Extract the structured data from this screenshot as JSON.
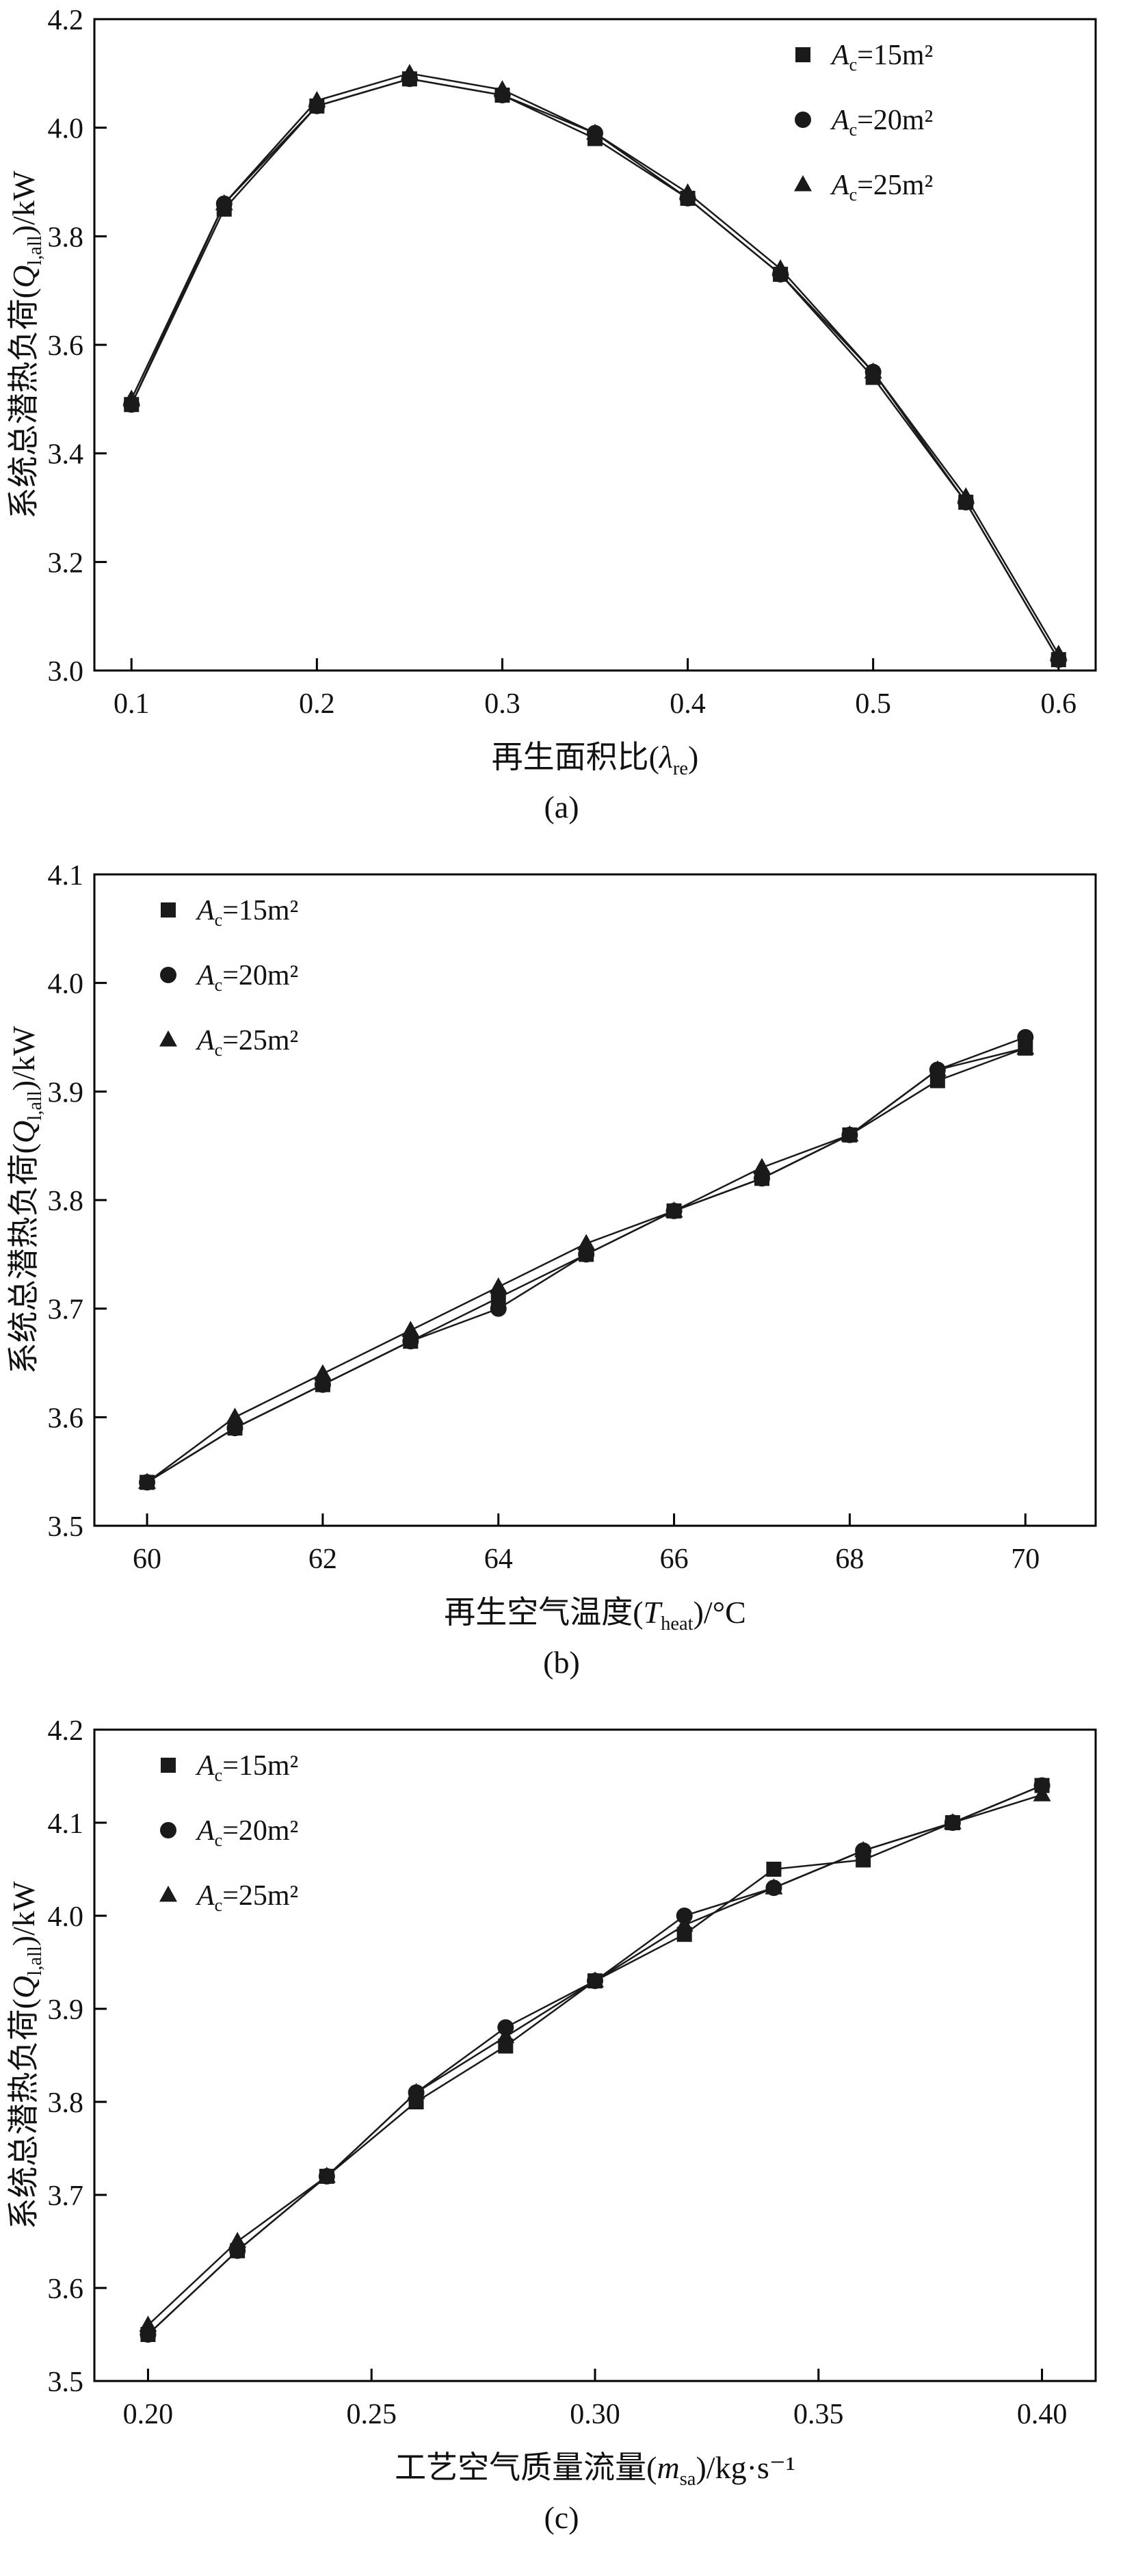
{
  "styles": {
    "background": "#ffffff",
    "axis_color": "#000000",
    "ink_color": "#1a1a1a"
  },
  "chart_data": [
    {
      "type": "line",
      "caption": "(a)",
      "xlabel": {
        "prefix": "再生面积比(",
        "var": "λ",
        "sub": "re",
        "suffix": ")"
      },
      "ylabel": {
        "prefix": "系统总潜热负荷(",
        "var": "Q",
        "sub": "l,all",
        "suffix": ")/kW"
      },
      "xlim": [
        0.08,
        0.62
      ],
      "ylim": [
        3.0,
        4.2
      ],
      "xticks": [
        0.1,
        0.2,
        0.3,
        0.4,
        0.5,
        0.6
      ],
      "xtick_labels": [
        "0.1",
        "0.2",
        "0.3",
        "0.4",
        "0.5",
        "0.6"
      ],
      "yticks": [
        3.0,
        3.2,
        3.4,
        3.6,
        3.8,
        4.0,
        4.2
      ],
      "ytick_labels": [
        "3.0",
        "3.2",
        "3.4",
        "3.6",
        "3.8",
        "4.0",
        "4.2"
      ],
      "legend_position": "top-right",
      "grid": false,
      "x": [
        0.1,
        0.15,
        0.2,
        0.25,
        0.3,
        0.35,
        0.4,
        0.45,
        0.5,
        0.55,
        0.6
      ],
      "series": [
        {
          "label": {
            "var": "A",
            "sub": "c",
            "rest": "=15m²"
          },
          "marker": "square",
          "values": [
            3.49,
            3.85,
            4.04,
            4.09,
            4.06,
            3.98,
            3.87,
            3.73,
            3.54,
            3.31,
            3.02
          ]
        },
        {
          "label": {
            "var": "A",
            "sub": "c",
            "rest": "=20m²"
          },
          "marker": "circle",
          "values": [
            3.49,
            3.86,
            4.04,
            4.09,
            4.06,
            3.99,
            3.87,
            3.73,
            3.55,
            3.31,
            3.02
          ]
        },
        {
          "label": {
            "var": "A",
            "sub": "c",
            "rest": "=25m²"
          },
          "marker": "triangle",
          "values": [
            3.5,
            3.86,
            4.05,
            4.1,
            4.07,
            3.99,
            3.88,
            3.74,
            3.55,
            3.32,
            3.03
          ]
        }
      ]
    },
    {
      "type": "line",
      "caption": "(b)",
      "xlabel": {
        "prefix": "再生空气温度(",
        "var": "T",
        "sub": "heat",
        "suffix": ")/°C"
      },
      "ylabel": {
        "prefix": "系统总潜热负荷(",
        "var": "Q",
        "sub": "l,all",
        "suffix": ")/kW"
      },
      "xlim": [
        59.4,
        70.8
      ],
      "ylim": [
        3.5,
        4.1
      ],
      "xticks": [
        60,
        62,
        64,
        66,
        68,
        70
      ],
      "xtick_labels": [
        "60",
        "62",
        "64",
        "66",
        "68",
        "70"
      ],
      "yticks": [
        3.5,
        3.6,
        3.7,
        3.8,
        3.9,
        4.0,
        4.1
      ],
      "ytick_labels": [
        "3.5",
        "3.6",
        "3.7",
        "3.8",
        "3.9",
        "4.0",
        "4.1"
      ],
      "legend_position": "top-left",
      "grid": false,
      "x": [
        60,
        61,
        62,
        63,
        64,
        65,
        66,
        67,
        68,
        69,
        70
      ],
      "series": [
        {
          "label": {
            "var": "A",
            "sub": "c",
            "rest": "=15m²"
          },
          "marker": "square",
          "values": [
            3.54,
            3.59,
            3.63,
            3.67,
            3.71,
            3.75,
            3.79,
            3.82,
            3.86,
            3.91,
            3.94
          ]
        },
        {
          "label": {
            "var": "A",
            "sub": "c",
            "rest": "=20m²"
          },
          "marker": "circle",
          "values": [
            3.54,
            3.59,
            3.63,
            3.67,
            3.7,
            3.75,
            3.79,
            3.82,
            3.86,
            3.92,
            3.95
          ]
        },
        {
          "label": {
            "var": "A",
            "sub": "c",
            "rest": "=25m²"
          },
          "marker": "triangle",
          "values": [
            3.54,
            3.6,
            3.64,
            3.68,
            3.72,
            3.76,
            3.79,
            3.83,
            3.86,
            3.92,
            3.94
          ]
        }
      ]
    },
    {
      "type": "line",
      "caption": "(c)",
      "xlabel": {
        "prefix": "工艺空气质量流量(",
        "var": "m",
        "sub": "sa",
        "suffix": ")/kg·s⁻¹"
      },
      "ylabel": {
        "prefix": "系统总潜热负荷(",
        "var": "Q",
        "sub": "l,all",
        "suffix": ")/kW"
      },
      "xlim": [
        0.188,
        0.412
      ],
      "ylim": [
        3.5,
        4.2
      ],
      "xticks": [
        0.2,
        0.25,
        0.3,
        0.35,
        0.4
      ],
      "xtick_labels": [
        "0.20",
        "0.25",
        "0.30",
        "0.35",
        "0.40"
      ],
      "yticks": [
        3.5,
        3.6,
        3.7,
        3.8,
        3.9,
        4.0,
        4.1,
        4.2
      ],
      "ytick_labels": [
        "3.5",
        "3.6",
        "3.7",
        "3.8",
        "3.9",
        "4.0",
        "4.1",
        "4.2"
      ],
      "legend_position": "top-left",
      "grid": false,
      "x": [
        0.2,
        0.22,
        0.24,
        0.26,
        0.28,
        0.3,
        0.32,
        0.34,
        0.36,
        0.38,
        0.4
      ],
      "series": [
        {
          "label": {
            "var": "A",
            "sub": "c",
            "rest": "=15m²"
          },
          "marker": "square",
          "values": [
            3.55,
            3.64,
            3.72,
            3.8,
            3.86,
            3.93,
            3.98,
            4.05,
            4.06,
            4.1,
            4.14
          ]
        },
        {
          "label": {
            "var": "A",
            "sub": "c",
            "rest": "=20m²"
          },
          "marker": "circle",
          "values": [
            3.55,
            3.64,
            3.72,
            3.81,
            3.88,
            3.93,
            4.0,
            4.03,
            4.07,
            4.1,
            4.14
          ]
        },
        {
          "label": {
            "var": "A",
            "sub": "c",
            "rest": "=25m²"
          },
          "marker": "triangle",
          "values": [
            3.56,
            3.65,
            3.72,
            3.81,
            3.87,
            3.93,
            3.99,
            4.03,
            4.07,
            4.1,
            4.13
          ]
        }
      ]
    }
  ]
}
